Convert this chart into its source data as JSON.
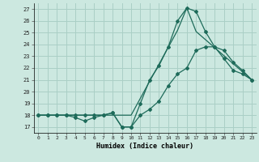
{
  "xlabel": "Humidex (Indice chaleur)",
  "xlim": [
    -0.5,
    23.5
  ],
  "ylim": [
    16.5,
    27.5
  ],
  "yticks": [
    17,
    18,
    19,
    20,
    21,
    22,
    23,
    24,
    25,
    26,
    27
  ],
  "xticks": [
    0,
    1,
    2,
    3,
    4,
    5,
    6,
    7,
    8,
    9,
    10,
    11,
    12,
    13,
    14,
    15,
    16,
    17,
    18,
    19,
    20,
    21,
    22,
    23
  ],
  "bg_color": "#cce8e0",
  "grid_color": "#aacfc6",
  "line_color": "#1e6b5a",
  "line1_x": [
    0,
    1,
    2,
    3,
    4,
    5,
    6,
    7,
    8,
    9,
    10,
    11,
    12,
    13,
    14,
    15,
    16,
    17,
    18,
    19,
    20,
    21,
    22,
    23
  ],
  "line1_y": [
    18.0,
    18.0,
    18.0,
    18.0,
    18.0,
    18.0,
    18.0,
    18.0,
    18.2,
    17.0,
    17.0,
    19.0,
    21.0,
    22.2,
    23.8,
    26.0,
    27.1,
    26.8,
    25.1,
    23.8,
    22.8,
    21.8,
    21.5,
    21.0
  ],
  "line2_x": [
    0,
    1,
    2,
    3,
    4,
    5,
    6,
    7,
    8,
    9,
    10,
    11,
    12,
    13,
    14,
    15,
    16,
    17,
    18,
    19,
    20,
    21,
    22,
    23
  ],
  "line2_y": [
    18.0,
    18.0,
    18.0,
    18.0,
    17.8,
    17.5,
    17.8,
    18.0,
    18.2,
    17.0,
    17.0,
    18.0,
    18.5,
    19.2,
    20.5,
    21.5,
    22.0,
    23.5,
    23.8,
    23.8,
    23.5,
    22.5,
    21.8,
    21.0
  ],
  "line3_x": [
    0,
    3,
    10,
    15,
    16,
    17,
    23
  ],
  "line3_y": [
    18.0,
    18.0,
    18.0,
    25.2,
    27.1,
    25.1,
    21.0
  ]
}
